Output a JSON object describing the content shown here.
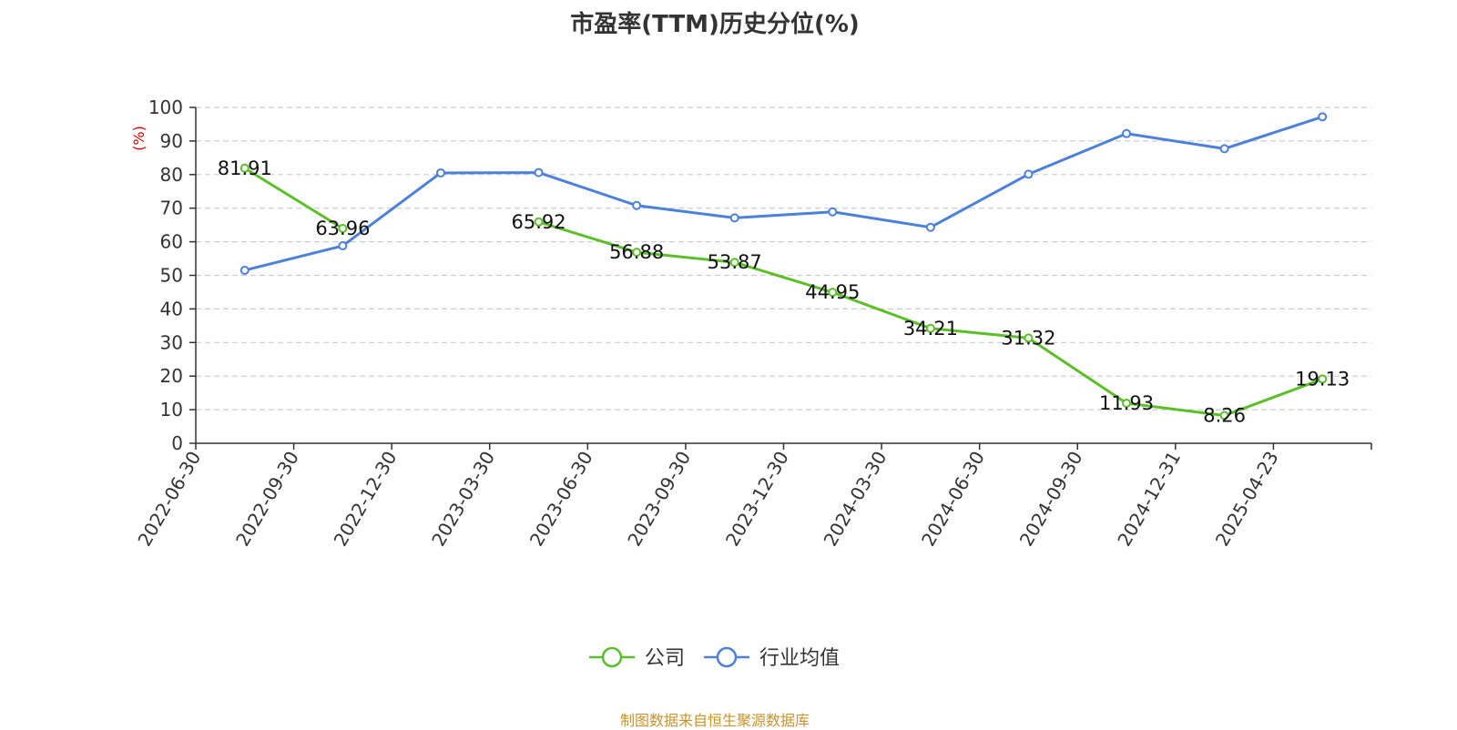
{
  "title": "市盈率(TTM)历史分位(%)",
  "source": "制图数据来自恒生聚源数据库",
  "colors": {
    "company": "#5cbf2a",
    "industry": "#4d80d9",
    "unit": "#e00000",
    "source": "#c8932a"
  },
  "chart_data": {
    "type": "line",
    "title": "市盈率(TTM)历史分位(%)",
    "ylabel": "(%)",
    "xlabel": "",
    "ylim": [
      0,
      100
    ],
    "yticks": [
      0,
      10,
      20,
      30,
      40,
      50,
      60,
      70,
      80,
      90,
      100
    ],
    "grid": true,
    "legend_position": "bottom",
    "categories": [
      "2022-06-30",
      "2022-09-30",
      "2022-12-30",
      "2023-03-30",
      "2023-06-30",
      "2023-09-30",
      "2023-12-30",
      "2024-03-30",
      "2024-06-30",
      "2024-09-30",
      "2024-12-31",
      "2025-04-23"
    ],
    "series": [
      {
        "name": "公司",
        "color": "#5cbf2a",
        "values": [
          81.91,
          63.96,
          null,
          65.92,
          56.88,
          53.87,
          44.95,
          34.21,
          31.32,
          11.93,
          8.26,
          19.13
        ],
        "labels": [
          "81.91",
          "63.96",
          null,
          "65.92",
          "56.88",
          "53.87",
          "44.95",
          "34.21",
          "31.32",
          "11.93",
          "8.26",
          "19.13"
        ]
      },
      {
        "name": "行业均值",
        "color": "#4d80d9",
        "values": [
          51.5,
          58.8,
          80.5,
          80.6,
          70.8,
          67.1,
          68.9,
          64.3,
          80.1,
          92.2,
          87.7,
          97.2
        ]
      }
    ]
  }
}
